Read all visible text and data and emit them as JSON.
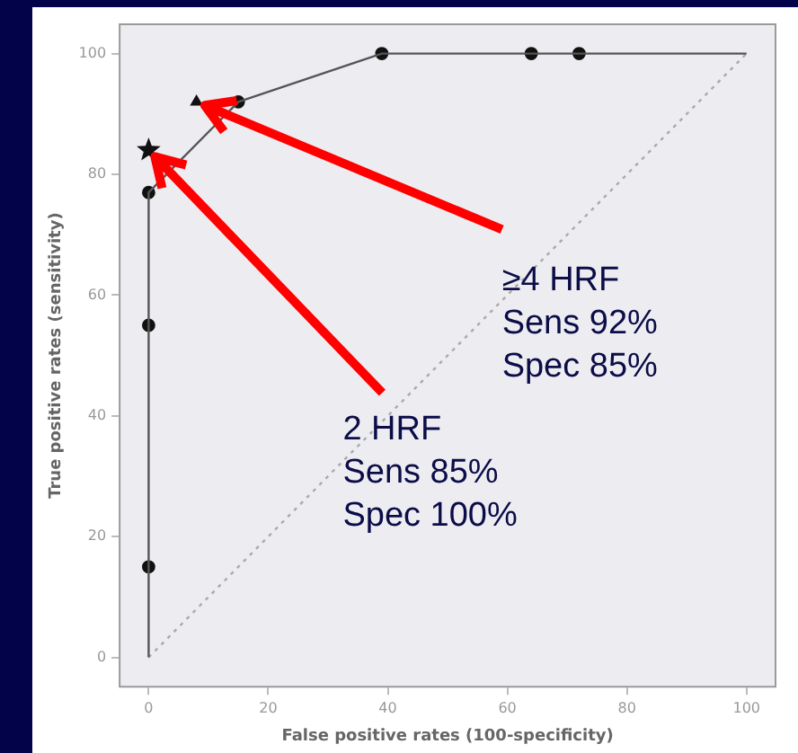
{
  "chart_data": {
    "type": "line",
    "xlabel": "False positive rates (100-specificity)",
    "ylabel": "True positive rates (sensitivity)",
    "xlim": [
      -5,
      105
    ],
    "ylim": [
      -5,
      105
    ],
    "xticks": [
      0,
      20,
      40,
      60,
      80,
      100
    ],
    "yticks": [
      0,
      20,
      40,
      60,
      80,
      100
    ],
    "legend": false,
    "series": [
      {
        "type": "line",
        "color": "#555555",
        "marker": "none",
        "line_style": "solid",
        "x": [
          0,
          0,
          0,
          0,
          15,
          39,
          64,
          72,
          100
        ],
        "values": [
          0,
          15,
          55,
          77,
          92,
          100,
          100,
          100,
          100
        ]
      },
      {
        "type": "scatter",
        "color": "#111111",
        "marker": "circle",
        "x": [
          0,
          0,
          0,
          15,
          39,
          64,
          72
        ],
        "values": [
          15,
          55,
          77,
          92,
          100,
          100,
          100
        ]
      },
      {
        "type": "scatter",
        "color": "#111111",
        "marker": "star",
        "x": [
          0
        ],
        "values": [
          84
        ]
      },
      {
        "type": "scatter",
        "color": "#111111",
        "marker": "triangle",
        "x": [
          8
        ],
        "values": [
          92
        ]
      },
      {
        "type": "line",
        "color": "#aaaaaa",
        "marker": "none",
        "line_style": "dotted",
        "x": [
          0,
          100
        ],
        "values": [
          0,
          100
        ]
      }
    ],
    "annotations": [
      {
        "text": "≥4 HRF\nSens 92%\nSpec 85%",
        "x": 8,
        "y": 92
      },
      {
        "text": "2 HRF\nSens 85%\nSpec 100%",
        "x": 0,
        "y": 84
      }
    ]
  }
}
